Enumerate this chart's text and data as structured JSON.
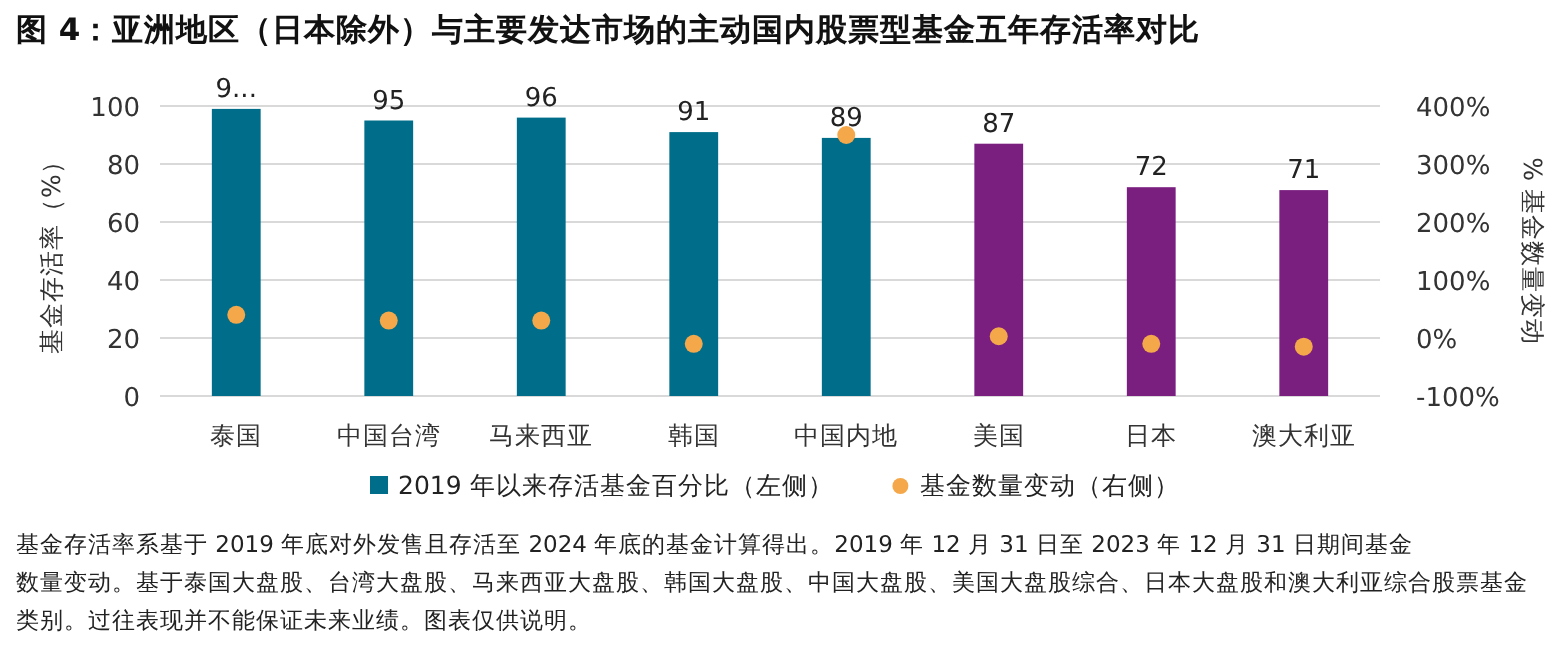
{
  "chart_data": {
    "type": "bar",
    "title": "图 4：亚洲地区（日本除外）与主要发达市场的主动国内股票型基金五年存活率对比",
    "categories": [
      "泰国",
      "中国台湾",
      "马来西亚",
      "韩国",
      "中国内地",
      "美国",
      "日本",
      "澳大利亚"
    ],
    "series": [
      {
        "name": "2019 年以来存活基金百分比（左侧）",
        "color": "#006e8a",
        "colors": [
          "#006e8a",
          "#006e8a",
          "#006e8a",
          "#006e8a",
          "#006e8a",
          "#7a1f80",
          "#7a1f80",
          "#7a1f80"
        ],
        "values": [
          99,
          95,
          96,
          91,
          89,
          87,
          72,
          71
        ],
        "value_labels": [
          "9...",
          "95",
          "96",
          "91",
          "89",
          "87",
          "72",
          "71"
        ]
      },
      {
        "name": "基金数量变动（右侧）",
        "type": "scatter",
        "axis": "y2",
        "color": "#f5a84a",
        "values": [
          40,
          30,
          30,
          -10,
          350,
          3,
          -10,
          -15
        ]
      }
    ],
    "ylabel": "基金存活率（%）",
    "y2label": "% 基金数量变动",
    "ylim": [
      0,
      100
    ],
    "yticks": [
      0,
      20,
      40,
      60,
      80,
      100
    ],
    "y2lim": [
      -100,
      400
    ],
    "y2ticks": [
      {
        "value": -100,
        "label": "-100%"
      },
      {
        "value": 0,
        "label": "0%"
      },
      {
        "value": 100,
        "label": "100%"
      },
      {
        "value": 200,
        "label": "200%"
      },
      {
        "value": 300,
        "label": "300%"
      },
      {
        "value": 400,
        "label": "400%"
      }
    ],
    "grid": "y",
    "legend": "bottom",
    "marker": "circle",
    "annotations": [
      "基金存活率系基于 2019 年底对外发售且存活至 2024 年底的基金计算得出。2019 年 12 月 31 日至 2023 年 12 月 31 日期间基金数量变动。基于泰国大盘股、台湾大盘股、马来西亚大盘股、韩国大盘股、中国大盘股、美国大盘股综合、日本大盘股和澳大利亚综合股票基金类别。过往表现并不能保证未来业绩。图表仅供说明。"
    ]
  }
}
